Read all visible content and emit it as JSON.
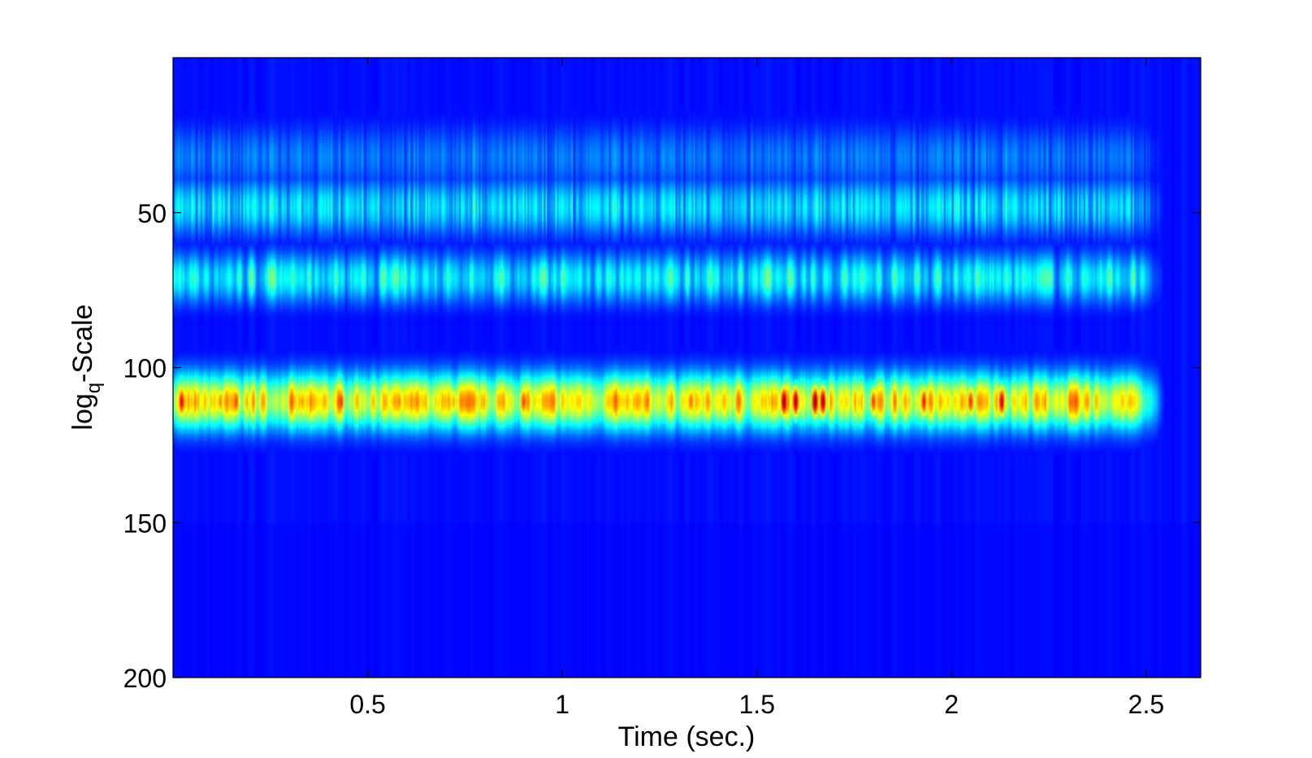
{
  "chart_data": {
    "type": "heatmap",
    "title": "",
    "xlabel": "Time (sec.)",
    "ylabel": "Scale",
    "ylabel_prefix": "log",
    "ylabel_subscript": "q",
    "ylabel_separator": "-",
    "xlim": [
      0,
      2.64
    ],
    "ylim": [
      200,
      0
    ],
    "y_axis_reversed": true,
    "xticks": [
      0.5,
      1,
      1.5,
      2,
      2.5
    ],
    "xtick_labels": [
      "0.5",
      "1",
      "1.5",
      "2",
      "2.5"
    ],
    "yticks": [
      50,
      100,
      150,
      200
    ],
    "ytick_labels": [
      "50",
      "100",
      "150",
      "200"
    ],
    "grid": false,
    "legend": "none",
    "colormap": "jet",
    "colors": {
      "background": "#00008f",
      "axis": "#000000"
    },
    "activity_end_time": 2.47,
    "bands": [
      {
        "name": "band-upper",
        "scale_center": 48,
        "scale_halfwidth": 9,
        "peak_intensity": 0.4
      },
      {
        "name": "band-middle",
        "scale_center": 71,
        "scale_halfwidth": 8,
        "peak_intensity": 0.48
      },
      {
        "name": "band-dominant",
        "scale_center": 111,
        "scale_halfwidth": 9,
        "peak_intensity": 1.0
      },
      {
        "name": "band-faint-top",
        "scale_center": 32,
        "scale_halfwidth": 10,
        "peak_intensity": 0.22
      }
    ],
    "dominant_band_hotspots": [
      {
        "time": 0.02,
        "intensity": 0.88
      },
      {
        "time": 0.12,
        "intensity": 0.72
      },
      {
        "time": 0.16,
        "intensity": 0.8
      },
      {
        "time": 0.33,
        "intensity": 0.7
      },
      {
        "time": 0.43,
        "intensity": 0.82
      },
      {
        "time": 0.58,
        "intensity": 0.72
      },
      {
        "time": 0.72,
        "intensity": 0.68
      },
      {
        "time": 0.9,
        "intensity": 0.8
      },
      {
        "time": 1.33,
        "intensity": 0.75
      },
      {
        "time": 1.57,
        "intensity": 0.98
      },
      {
        "time": 1.6,
        "intensity": 0.96
      },
      {
        "time": 1.65,
        "intensity": 0.98
      },
      {
        "time": 1.67,
        "intensity": 0.96
      },
      {
        "time": 1.8,
        "intensity": 0.8
      },
      {
        "time": 1.93,
        "intensity": 0.85
      },
      {
        "time": 2.05,
        "intensity": 0.82
      },
      {
        "time": 2.13,
        "intensity": 0.92
      }
    ]
  }
}
